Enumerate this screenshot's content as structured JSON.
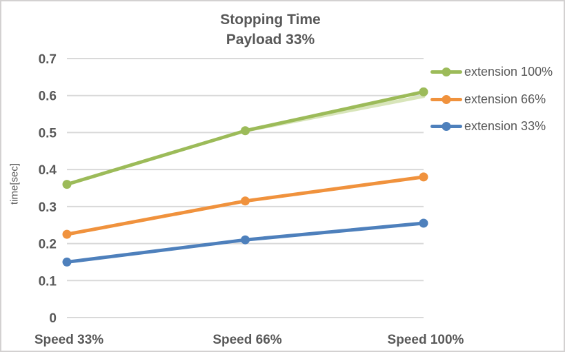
{
  "window": {
    "background": "#FFFFFF",
    "border_color": "#D3D1D1"
  },
  "chart_data": {
    "type": "line",
    "title": "Stopping Time",
    "subtitle": "Payload 33%",
    "ylabel": "time[sec]",
    "xlabel": "",
    "categories": [
      "Speed 33%",
      "Speed 66%",
      "Speed 100%"
    ],
    "series": [
      {
        "name": "extension 100%",
        "color": "#9CBB59",
        "values": [
          0.36,
          0.505,
          0.61
        ]
      },
      {
        "name": "extension 66%",
        "color": "#F0923D",
        "values": [
          0.225,
          0.315,
          0.38
        ]
      },
      {
        "name": "extension 33%",
        "color": "#4E80BC",
        "values": [
          0.15,
          0.21,
          0.255
        ]
      }
    ],
    "shadow_line": {
      "attached_to": "extension 100%",
      "color": "#D8E5BA",
      "values": [
        null,
        0.505,
        0.598
      ]
    },
    "ylim": [
      0,
      0.7
    ],
    "yticks": [
      {
        "value": 0.0,
        "label": "0"
      },
      {
        "value": 0.1,
        "label": "0.1"
      },
      {
        "value": 0.2,
        "label": "0.2"
      },
      {
        "value": 0.3,
        "label": "0.3"
      },
      {
        "value": 0.4,
        "label": "0.4"
      },
      {
        "value": 0.5,
        "label": "0.5"
      },
      {
        "value": 0.6,
        "label": "0.6"
      },
      {
        "value": 0.7,
        "label": "0.7"
      }
    ],
    "grid": true,
    "legend_position": "right",
    "text_color": "#595959",
    "gridline_color": "#D9D9D9"
  }
}
